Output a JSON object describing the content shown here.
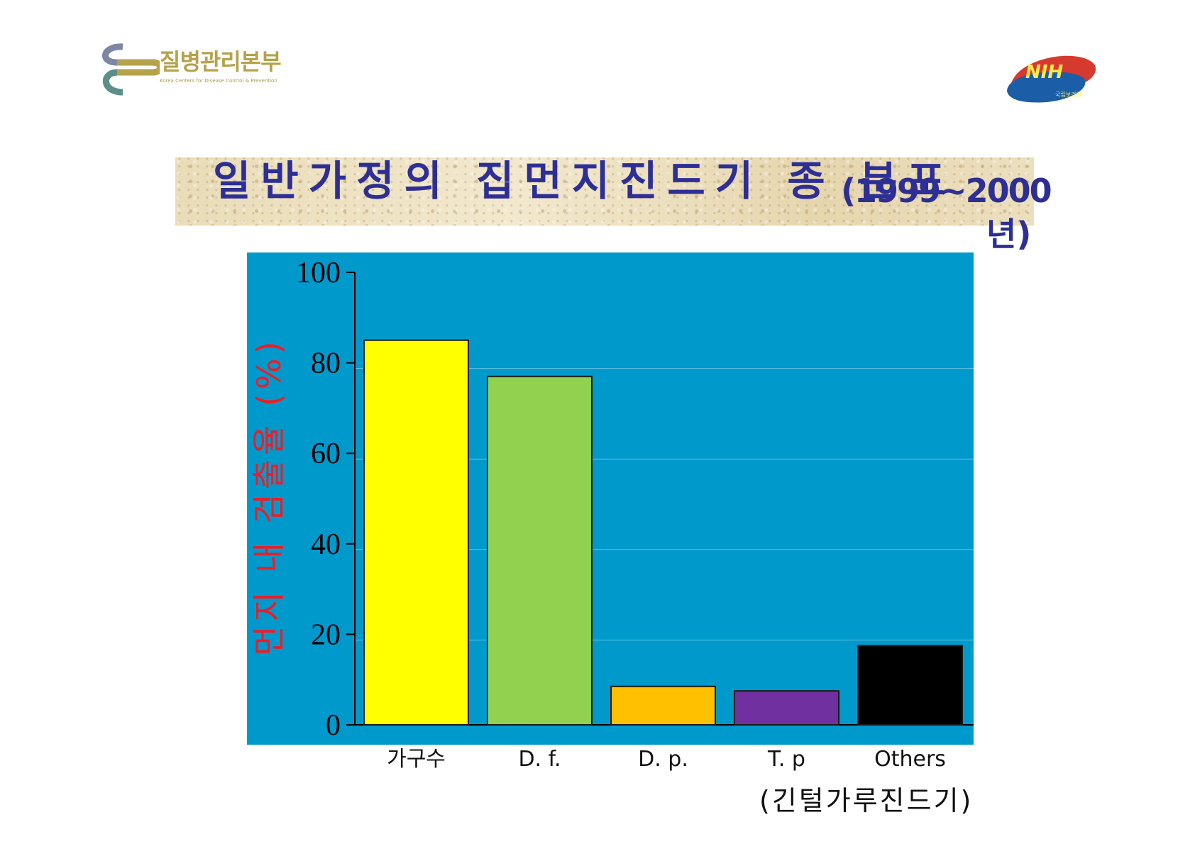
{
  "header": {
    "org_name": "질병관리본부",
    "org_subtitle": "Korea Centers for Disease Control & Prevention",
    "nih_logo_text": "NIH",
    "nih_logo_subtext": "국립보건원"
  },
  "colors": {
    "title_text": "#2d2f94",
    "plot_background": "#0099cc",
    "ylabel_text": "#ee1c25",
    "kcdc_gold": "#b5a24a",
    "nih_red": "#d63a2f",
    "nih_blue": "#1b5da6"
  },
  "title": {
    "main": "일반가정의 집먼지진드기 종 분포",
    "year": "(1999~2000",
    "year_suffix": "년)"
  },
  "chart_data": {
    "type": "bar",
    "categories": [
      "가구수",
      "D. f.",
      "D. p.",
      "T. p",
      "Others"
    ],
    "values": [
      85,
      77,
      8.5,
      7.5,
      17.5
    ],
    "bar_colors": [
      "#ffff00",
      "#92d050",
      "#ffc000",
      "#7030a0",
      "#000000"
    ],
    "ylabel": "먼지 내 검출율 (%)",
    "xlabel": "",
    "ylim": [
      0,
      100
    ],
    "yticks": [
      0,
      20,
      40,
      60,
      80,
      100
    ],
    "x_footnote": "(긴털가루진드기)",
    "grid": true,
    "legend": "none"
  }
}
